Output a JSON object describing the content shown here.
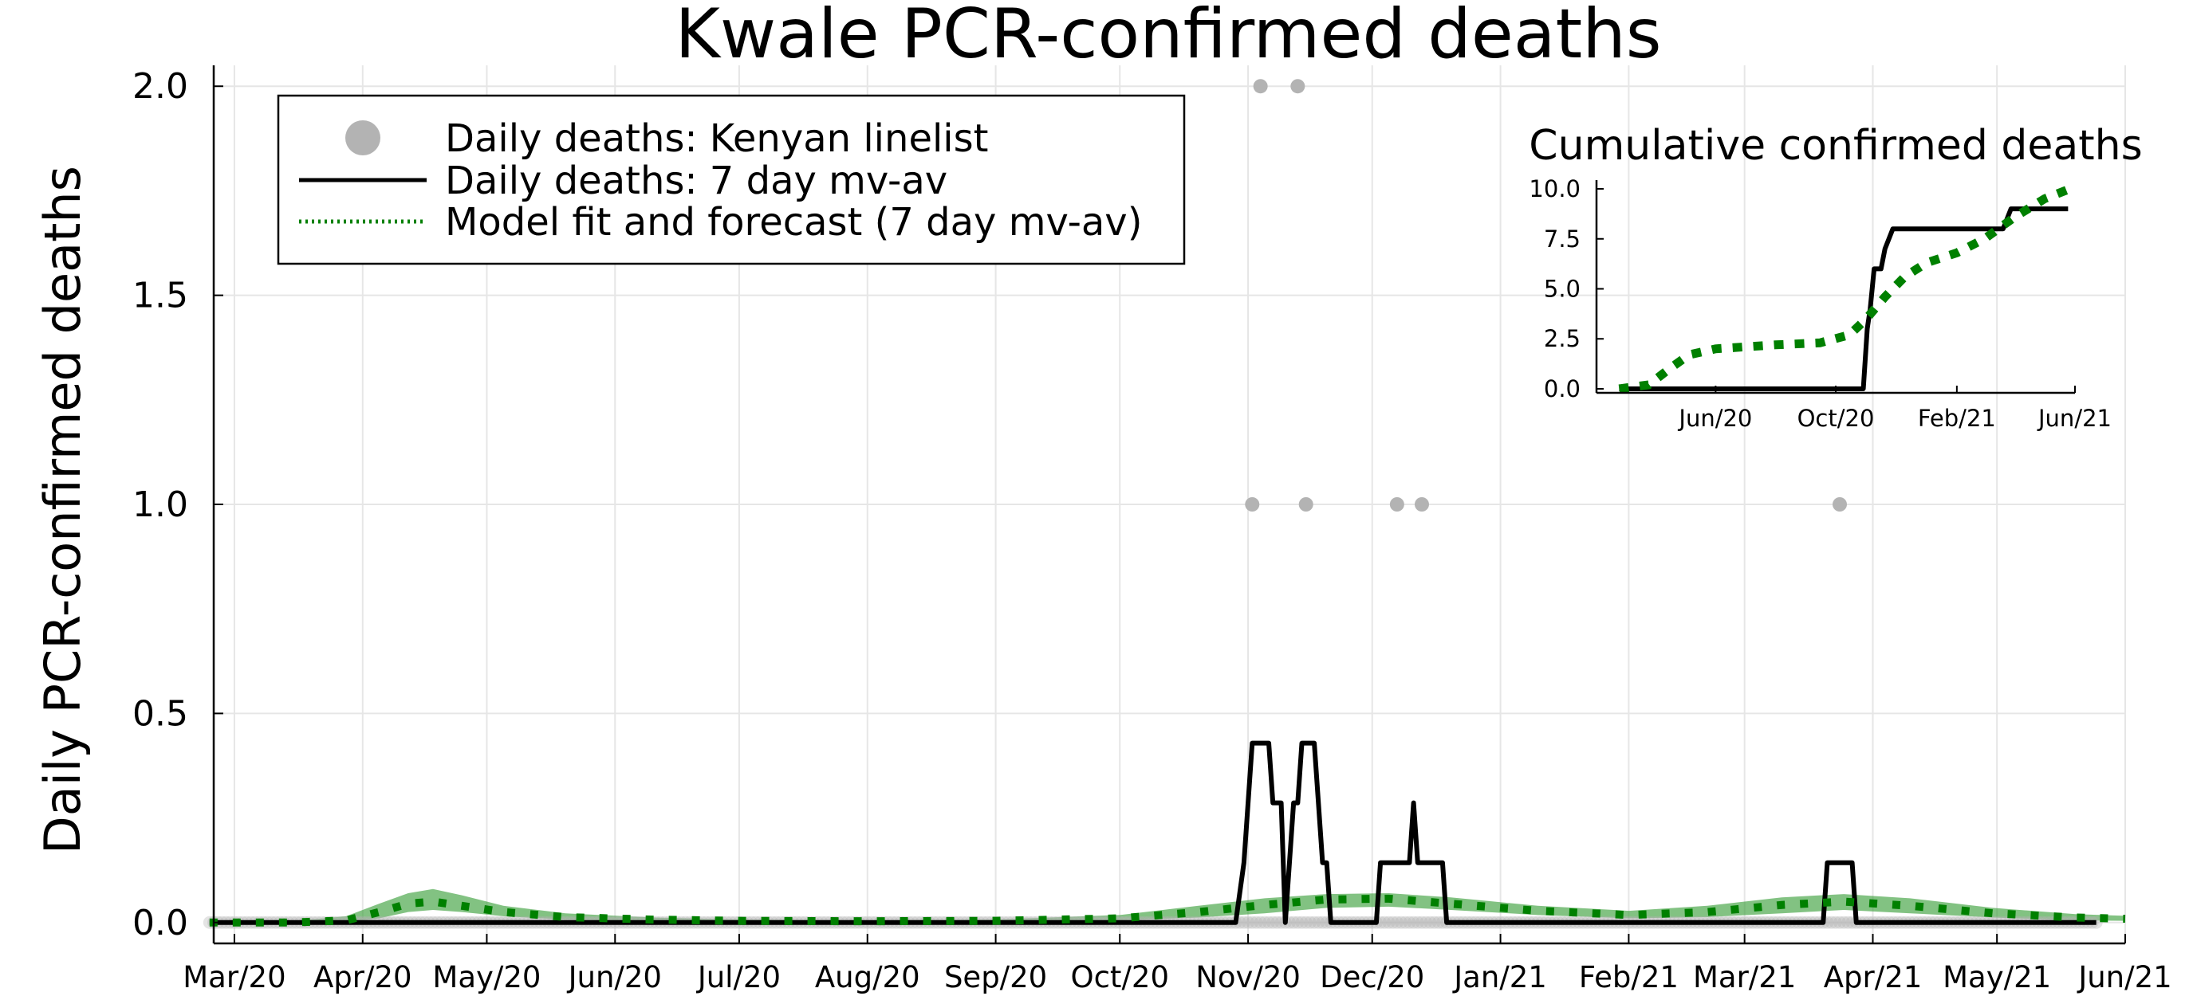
{
  "chart_data": [
    {
      "type": "line",
      "title": "Kwale PCR-confirmed deaths",
      "xlabel": "",
      "ylabel": "Daily PCR-confirmed deaths",
      "x_type": "date",
      "xlim": [
        "2020-02-25",
        "2021-06-01"
      ],
      "ylim": [
        -0.05,
        2.05
      ],
      "grid": true,
      "legend_position": "top-left",
      "x_ticks": [
        "Mar/20",
        "Apr/20",
        "May/20",
        "Jun/20",
        "Jul/20",
        "Aug/20",
        "Sep/20",
        "Oct/20",
        "Nov/20",
        "Dec/20",
        "Jan/21",
        "Feb/21",
        "Mar/21",
        "Apr/21",
        "May/21",
        "Jun/21"
      ],
      "y_ticks": [
        "0.0",
        "0.5",
        "1.0",
        "1.5",
        "2.0"
      ],
      "legend": [
        "Daily deaths: Kenyan linelist",
        "Daily deaths: 7 day mv-av",
        "Model fit and forecast (7 day mv-av)"
      ],
      "series": [
        {
          "name": "Daily deaths: Kenyan linelist",
          "kind": "scatter",
          "color": "#b3b3b3",
          "x_range": [
            "2020-02-24",
            "2021-05-25"
          ],
          "baseline_value": 0,
          "points": [
            {
              "x": "2020-11-02",
              "y": 1
            },
            {
              "x": "2020-11-04",
              "y": 2
            },
            {
              "x": "2020-11-13",
              "y": 2
            },
            {
              "x": "2020-11-15",
              "y": 1
            },
            {
              "x": "2020-12-07",
              "y": 1
            },
            {
              "x": "2020-12-13",
              "y": 1
            },
            {
              "x": "2021-03-24",
              "y": 1
            }
          ]
        },
        {
          "name": "Daily deaths: 7 day mv-av",
          "kind": "line",
          "color": "#000000",
          "points": [
            {
              "x": "2020-02-24",
              "y": 0
            },
            {
              "x": "2020-10-29",
              "y": 0
            },
            {
              "x": "2020-10-31",
              "y": 0.143
            },
            {
              "x": "2020-11-02",
              "y": 0.429
            },
            {
              "x": "2020-11-06",
              "y": 0.429
            },
            {
              "x": "2020-11-07",
              "y": 0.286
            },
            {
              "x": "2020-11-09",
              "y": 0.286
            },
            {
              "x": "2020-11-10",
              "y": 0
            },
            {
              "x": "2020-11-11",
              "y": 0.143
            },
            {
              "x": "2020-11-12",
              "y": 0.286
            },
            {
              "x": "2020-11-13",
              "y": 0.286
            },
            {
              "x": "2020-11-14",
              "y": 0.429
            },
            {
              "x": "2020-11-17",
              "y": 0.429
            },
            {
              "x": "2020-11-19",
              "y": 0.143
            },
            {
              "x": "2020-11-20",
              "y": 0.143
            },
            {
              "x": "2020-11-21",
              "y": 0
            },
            {
              "x": "2020-12-02",
              "y": 0
            },
            {
              "x": "2020-12-03",
              "y": 0.143
            },
            {
              "x": "2020-12-10",
              "y": 0.143
            },
            {
              "x": "2020-12-11",
              "y": 0.286
            },
            {
              "x": "2020-12-12",
              "y": 0.143
            },
            {
              "x": "2020-12-18",
              "y": 0.143
            },
            {
              "x": "2020-12-19",
              "y": 0
            },
            {
              "x": "2021-03-20",
              "y": 0
            },
            {
              "x": "2021-03-21",
              "y": 0.143
            },
            {
              "x": "2021-03-27",
              "y": 0.143
            },
            {
              "x": "2021-03-28",
              "y": 0
            },
            {
              "x": "2021-05-25",
              "y": 0
            }
          ]
        },
        {
          "name": "Model fit and forecast (7 day mv-av)",
          "kind": "dotted-line-with-band",
          "color": "#008000",
          "band_color": "#2e9a2e",
          "points": [
            {
              "x": "2020-02-24",
              "y": 0,
              "lo": 0,
              "hi": 0
            },
            {
              "x": "2020-03-15",
              "y": 0,
              "lo": 0,
              "hi": 0.003
            },
            {
              "x": "2020-03-28",
              "y": 0.005,
              "lo": 0,
              "hi": 0.015
            },
            {
              "x": "2020-04-05",
              "y": 0.025,
              "lo": 0.01,
              "hi": 0.045
            },
            {
              "x": "2020-04-12",
              "y": 0.045,
              "lo": 0.025,
              "hi": 0.07
            },
            {
              "x": "2020-04-18",
              "y": 0.05,
              "lo": 0.03,
              "hi": 0.08
            },
            {
              "x": "2020-04-25",
              "y": 0.04,
              "lo": 0.025,
              "hi": 0.065
            },
            {
              "x": "2020-05-05",
              "y": 0.025,
              "lo": 0.015,
              "hi": 0.04
            },
            {
              "x": "2020-05-20",
              "y": 0.013,
              "lo": 0.007,
              "hi": 0.022
            },
            {
              "x": "2020-06-10",
              "y": 0.007,
              "lo": 0.003,
              "hi": 0.012
            },
            {
              "x": "2020-07-01",
              "y": 0.004,
              "lo": 0.002,
              "hi": 0.007
            },
            {
              "x": "2020-08-01",
              "y": 0.003,
              "lo": 0.001,
              "hi": 0.005
            },
            {
              "x": "2020-09-01",
              "y": 0.004,
              "lo": 0.002,
              "hi": 0.007
            },
            {
              "x": "2020-10-01",
              "y": 0.01,
              "lo": 0.005,
              "hi": 0.018
            },
            {
              "x": "2020-10-20",
              "y": 0.025,
              "lo": 0.012,
              "hi": 0.04
            },
            {
              "x": "2020-11-05",
              "y": 0.042,
              "lo": 0.022,
              "hi": 0.058
            },
            {
              "x": "2020-11-20",
              "y": 0.055,
              "lo": 0.035,
              "hi": 0.068
            },
            {
              "x": "2020-12-05",
              "y": 0.057,
              "lo": 0.038,
              "hi": 0.07
            },
            {
              "x": "2020-12-20",
              "y": 0.045,
              "lo": 0.03,
              "hi": 0.06
            },
            {
              "x": "2021-01-10",
              "y": 0.028,
              "lo": 0.018,
              "hi": 0.04
            },
            {
              "x": "2021-02-01",
              "y": 0.018,
              "lo": 0.01,
              "hi": 0.028
            },
            {
              "x": "2021-02-20",
              "y": 0.025,
              "lo": 0.013,
              "hi": 0.04
            },
            {
              "x": "2021-03-10",
              "y": 0.042,
              "lo": 0.022,
              "hi": 0.06
            },
            {
              "x": "2021-03-25",
              "y": 0.05,
              "lo": 0.03,
              "hi": 0.068
            },
            {
              "x": "2021-04-10",
              "y": 0.04,
              "lo": 0.022,
              "hi": 0.058
            },
            {
              "x": "2021-04-30",
              "y": 0.022,
              "lo": 0.012,
              "hi": 0.035
            },
            {
              "x": "2021-05-20",
              "y": 0.012,
              "lo": 0.005,
              "hi": 0.02
            },
            {
              "x": "2021-06-01",
              "y": 0.009,
              "lo": 0.004,
              "hi": 0.016
            }
          ]
        }
      ]
    },
    {
      "type": "line",
      "title": "Cumulative confirmed deaths",
      "xlabel": "",
      "ylabel": "",
      "x_type": "date",
      "xlim": [
        "2020-02-01",
        "2021-06-01"
      ],
      "ylim": [
        -0.2,
        10.2
      ],
      "grid": false,
      "position": "inset top-right",
      "x_ticks": [
        "Jun/20",
        "Oct/20",
        "Feb/21",
        "Jun/21"
      ],
      "y_ticks": [
        "0.0",
        "2.5",
        "5.0",
        "7.5",
        "10.0"
      ],
      "series": [
        {
          "name": "Daily deaths: 7 day mv-av",
          "kind": "line",
          "color": "#000000",
          "points": [
            {
              "x": "2020-02-24",
              "y": 0
            },
            {
              "x": "2020-10-29",
              "y": 0
            },
            {
              "x": "2020-11-02",
              "y": 3
            },
            {
              "x": "2020-11-05",
              "y": 4
            },
            {
              "x": "2020-11-09",
              "y": 6
            },
            {
              "x": "2020-11-16",
              "y": 6
            },
            {
              "x": "2020-11-20",
              "y": 7
            },
            {
              "x": "2020-11-28",
              "y": 8
            },
            {
              "x": "2021-03-20",
              "y": 8
            },
            {
              "x": "2021-03-28",
              "y": 9
            },
            {
              "x": "2021-05-25",
              "y": 9
            }
          ]
        },
        {
          "name": "Model fit and forecast (7 day mv-av)",
          "kind": "dotted-line",
          "color": "#008000",
          "points": [
            {
              "x": "2020-02-24",
              "y": 0
            },
            {
              "x": "2020-03-25",
              "y": 0.2
            },
            {
              "x": "2020-04-15",
              "y": 1
            },
            {
              "x": "2020-05-05",
              "y": 1.7
            },
            {
              "x": "2020-06-01",
              "y": 2
            },
            {
              "x": "2020-08-01",
              "y": 2.2
            },
            {
              "x": "2020-09-15",
              "y": 2.3
            },
            {
              "x": "2020-10-15",
              "y": 2.7
            },
            {
              "x": "2020-11-01",
              "y": 3.5
            },
            {
              "x": "2020-11-20",
              "y": 4.6
            },
            {
              "x": "2020-12-10",
              "y": 5.6
            },
            {
              "x": "2021-01-01",
              "y": 6.3
            },
            {
              "x": "2021-02-01",
              "y": 6.8
            },
            {
              "x": "2021-03-01",
              "y": 7.5
            },
            {
              "x": "2021-04-01",
              "y": 8.6
            },
            {
              "x": "2021-05-01",
              "y": 9.5
            },
            {
              "x": "2021-06-01",
              "y": 10.1
            }
          ]
        }
      ]
    }
  ]
}
